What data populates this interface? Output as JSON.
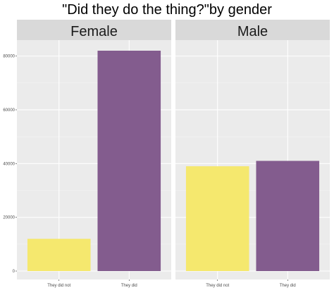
{
  "chart_data": {
    "type": "bar",
    "title": "\"Did they do the thing?\"by gender",
    "xlabel": "",
    "ylabel": "",
    "ylim": [
      0,
      86000
    ],
    "yticks": [
      0,
      20000,
      40000,
      60000,
      80000
    ],
    "grid": true,
    "categories": [
      "They did not",
      "They did"
    ],
    "bar_colors": [
      "#F5E86E",
      "#835C8E"
    ],
    "panel_background": "#EBEBEB",
    "strip_background": "#D9D9D9",
    "panels": [
      {
        "label": "Female",
        "values": [
          12000,
          82000
        ]
      },
      {
        "label": "Male",
        "values": [
          39000,
          41000
        ]
      }
    ]
  }
}
